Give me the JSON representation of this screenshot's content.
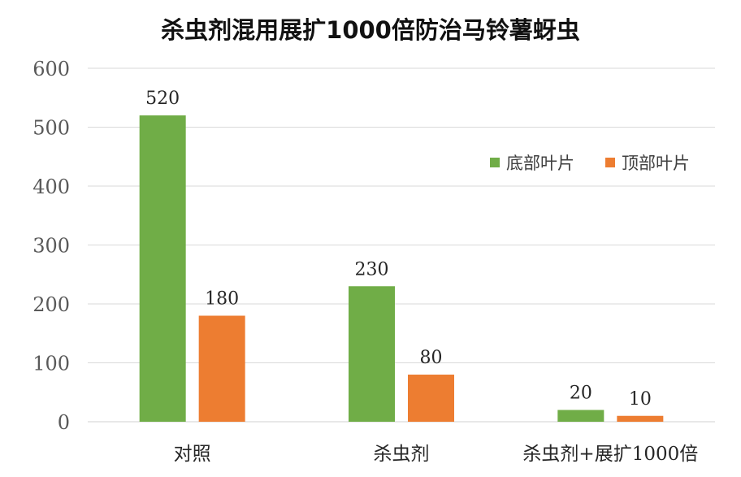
{
  "chart_data": {
    "type": "bar",
    "title": "杀虫剂混用展扩1000倍防治马铃薯蚜虫",
    "categories": [
      "对照",
      "杀虫剂",
      "杀虫剂+展扩1000倍"
    ],
    "series": [
      {
        "name": "底部叶片",
        "values": [
          520,
          230,
          20
        ],
        "color": "#70ad47"
      },
      {
        "name": "顶部叶片",
        "values": [
          180,
          80,
          10
        ],
        "color": "#ed7d31"
      }
    ],
    "yticks": [
      "0",
      "100",
      "200",
      "300",
      "400",
      "500",
      "600"
    ],
    "ylim": [
      0,
      600
    ],
    "grid": true,
    "legend_position": "top-right",
    "xlabel": "",
    "ylabel": ""
  }
}
